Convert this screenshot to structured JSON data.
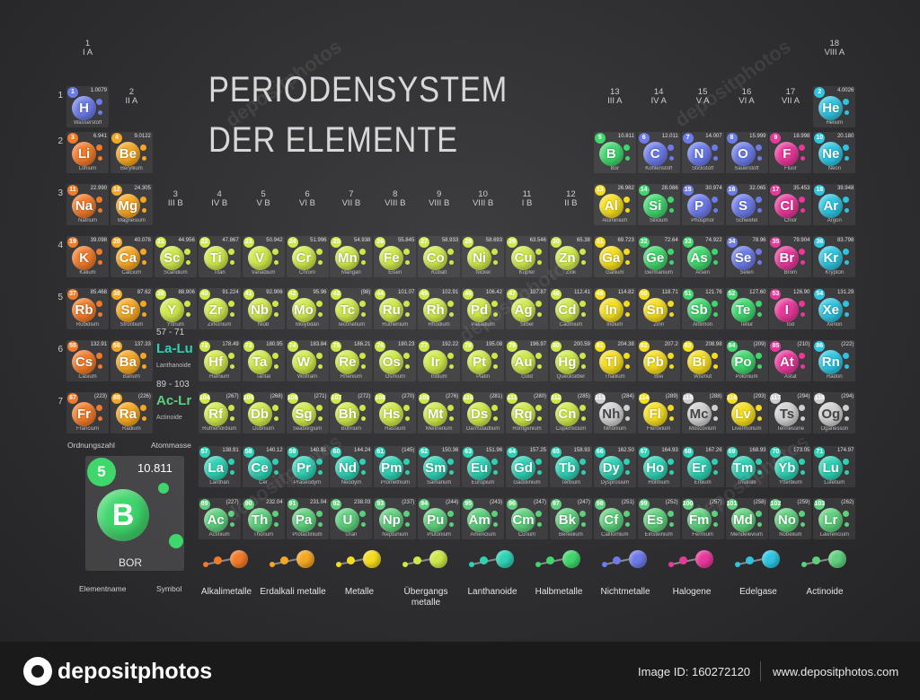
{
  "title_line1": "PERIODENSYSTEM",
  "title_line2": "DER ELEMENTE",
  "groups": [
    {
      "col": 1,
      "n": "1",
      "r": "I A",
      "row": 0
    },
    {
      "col": 2,
      "n": "2",
      "r": "II A",
      "row": 1
    },
    {
      "col": 3,
      "n": "3",
      "r": "III B",
      "row": 3
    },
    {
      "col": 4,
      "n": "4",
      "r": "IV B",
      "row": 3
    },
    {
      "col": 5,
      "n": "5",
      "r": "V B",
      "row": 3
    },
    {
      "col": 6,
      "n": "6",
      "r": "VI B",
      "row": 3
    },
    {
      "col": 7,
      "n": "7",
      "r": "VII B",
      "row": 3
    },
    {
      "col": 8,
      "n": "8",
      "r": "VIII B",
      "row": 3
    },
    {
      "col": 9,
      "n": "9",
      "r": "VIII B",
      "row": 3
    },
    {
      "col": 10,
      "n": "10",
      "r": "VIII B",
      "row": 3
    },
    {
      "col": 11,
      "n": "11",
      "r": "I B",
      "row": 3
    },
    {
      "col": 12,
      "n": "12",
      "r": "II B",
      "row": 3
    },
    {
      "col": 13,
      "n": "13",
      "r": "III A",
      "row": 1
    },
    {
      "col": 14,
      "n": "14",
      "r": "IV A",
      "row": 1
    },
    {
      "col": 15,
      "n": "15",
      "r": "V A",
      "row": 1
    },
    {
      "col": 16,
      "n": "16",
      "r": "VI A",
      "row": 1
    },
    {
      "col": 17,
      "n": "17",
      "r": "VII A",
      "row": 1
    },
    {
      "col": 18,
      "n": "18",
      "r": "VIII A",
      "row": 0
    }
  ],
  "periods": [
    "1",
    "2",
    "3",
    "4",
    "5",
    "6",
    "7"
  ],
  "colors": {
    "alkali": "#f07a2a",
    "alkaline": "#f5a623",
    "transition": "#cde84a",
    "posttrans": "#f4dc1e",
    "metalloid": "#3fd66c",
    "nonmetal": "#6c7be8",
    "halogen": "#e8389a",
    "noble": "#2ec4e0",
    "lanthanide": "#2ed1b4",
    "actinide": "#5ecf7c",
    "unknown": "#cfcfcf"
  },
  "elements": [
    {
      "z": "1",
      "s": "H",
      "n": "Wasserstoff",
      "m": "1.0079",
      "p": 1,
      "g": 1,
      "c": "nonmetal"
    },
    {
      "z": "2",
      "s": "He",
      "n": "Helium",
      "m": "4.0026",
      "p": 1,
      "g": 18,
      "c": "noble"
    },
    {
      "z": "3",
      "s": "Li",
      "n": "Lithium",
      "m": "6.941",
      "p": 2,
      "g": 1,
      "c": "alkali"
    },
    {
      "z": "4",
      "s": "Be",
      "n": "Beryllium",
      "m": "9.0122",
      "p": 2,
      "g": 2,
      "c": "alkaline"
    },
    {
      "z": "5",
      "s": "B",
      "n": "Bor",
      "m": "10.811",
      "p": 2,
      "g": 13,
      "c": "metalloid"
    },
    {
      "z": "6",
      "s": "C",
      "n": "Kohlenstoff",
      "m": "12.011",
      "p": 2,
      "g": 14,
      "c": "nonmetal"
    },
    {
      "z": "7",
      "s": "N",
      "n": "Stickstoff",
      "m": "14.007",
      "p": 2,
      "g": 15,
      "c": "nonmetal"
    },
    {
      "z": "8",
      "s": "O",
      "n": "Sauerstoff",
      "m": "15.999",
      "p": 2,
      "g": 16,
      "c": "nonmetal"
    },
    {
      "z": "9",
      "s": "F",
      "n": "Fluor",
      "m": "18.998",
      "p": 2,
      "g": 17,
      "c": "halogen"
    },
    {
      "z": "10",
      "s": "Ne",
      "n": "Neon",
      "m": "20.180",
      "p": 2,
      "g": 18,
      "c": "noble"
    },
    {
      "z": "11",
      "s": "Na",
      "n": "Natrium",
      "m": "22.990",
      "p": 3,
      "g": 1,
      "c": "alkali"
    },
    {
      "z": "12",
      "s": "Mg",
      "n": "Magnesium",
      "m": "24.305",
      "p": 3,
      "g": 2,
      "c": "alkaline"
    },
    {
      "z": "13",
      "s": "Al",
      "n": "Aluminium",
      "m": "26.982",
      "p": 3,
      "g": 13,
      "c": "posttrans"
    },
    {
      "z": "14",
      "s": "Si",
      "n": "Silicium",
      "m": "28.086",
      "p": 3,
      "g": 14,
      "c": "metalloid"
    },
    {
      "z": "15",
      "s": "P",
      "n": "Phosphor",
      "m": "30.974",
      "p": 3,
      "g": 15,
      "c": "nonmetal"
    },
    {
      "z": "16",
      "s": "S",
      "n": "Schwefel",
      "m": "32.065",
      "p": 3,
      "g": 16,
      "c": "nonmetal"
    },
    {
      "z": "17",
      "s": "Cl",
      "n": "Chlor",
      "m": "35.453",
      "p": 3,
      "g": 17,
      "c": "halogen"
    },
    {
      "z": "18",
      "s": "Ar",
      "n": "Argon",
      "m": "39.948",
      "p": 3,
      "g": 18,
      "c": "noble"
    },
    {
      "z": "19",
      "s": "K",
      "n": "Kalium",
      "m": "39.098",
      "p": 4,
      "g": 1,
      "c": "alkali"
    },
    {
      "z": "20",
      "s": "Ca",
      "n": "Calcium",
      "m": "40.078",
      "p": 4,
      "g": 2,
      "c": "alkaline"
    },
    {
      "z": "21",
      "s": "Sc",
      "n": "Scandium",
      "m": "44.956",
      "p": 4,
      "g": 3,
      "c": "transition"
    },
    {
      "z": "22",
      "s": "Ti",
      "n": "Titan",
      "m": "47.867",
      "p": 4,
      "g": 4,
      "c": "transition"
    },
    {
      "z": "23",
      "s": "V",
      "n": "Vanadium",
      "m": "50.942",
      "p": 4,
      "g": 5,
      "c": "transition"
    },
    {
      "z": "24",
      "s": "Cr",
      "n": "Chrom",
      "m": "51.996",
      "p": 4,
      "g": 6,
      "c": "transition"
    },
    {
      "z": "25",
      "s": "Mn",
      "n": "Mangan",
      "m": "54.938",
      "p": 4,
      "g": 7,
      "c": "transition"
    },
    {
      "z": "26",
      "s": "Fe",
      "n": "Eisen",
      "m": "55.845",
      "p": 4,
      "g": 8,
      "c": "transition"
    },
    {
      "z": "27",
      "s": "Co",
      "n": "Kobalt",
      "m": "58.933",
      "p": 4,
      "g": 9,
      "c": "transition"
    },
    {
      "z": "28",
      "s": "Ni",
      "n": "Nickel",
      "m": "58.693",
      "p": 4,
      "g": 10,
      "c": "transition"
    },
    {
      "z": "29",
      "s": "Cu",
      "n": "Kupfer",
      "m": "63.546",
      "p": 4,
      "g": 11,
      "c": "transition"
    },
    {
      "z": "30",
      "s": "Zn",
      "n": "Zink",
      "m": "65.38",
      "p": 4,
      "g": 12,
      "c": "transition"
    },
    {
      "z": "31",
      "s": "Ga",
      "n": "Gallium",
      "m": "69.723",
      "p": 4,
      "g": 13,
      "c": "posttrans"
    },
    {
      "z": "32",
      "s": "Ge",
      "n": "Germanium",
      "m": "72.64",
      "p": 4,
      "g": 14,
      "c": "metalloid"
    },
    {
      "z": "33",
      "s": "As",
      "n": "Arsen",
      "m": "74.922",
      "p": 4,
      "g": 15,
      "c": "metalloid"
    },
    {
      "z": "34",
      "s": "Se",
      "n": "Selen",
      "m": "78.96",
      "p": 4,
      "g": 16,
      "c": "nonmetal"
    },
    {
      "z": "35",
      "s": "Br",
      "n": "Brom",
      "m": "79.904",
      "p": 4,
      "g": 17,
      "c": "halogen"
    },
    {
      "z": "36",
      "s": "Kr",
      "n": "Krypton",
      "m": "83.798",
      "p": 4,
      "g": 18,
      "c": "noble"
    },
    {
      "z": "37",
      "s": "Rb",
      "n": "Rubidium",
      "m": "85.468",
      "p": 5,
      "g": 1,
      "c": "alkali"
    },
    {
      "z": "38",
      "s": "Sr",
      "n": "Strontium",
      "m": "87.62",
      "p": 5,
      "g": 2,
      "c": "alkaline"
    },
    {
      "z": "39",
      "s": "Y",
      "n": "Yttrium",
      "m": "88.906",
      "p": 5,
      "g": 3,
      "c": "transition"
    },
    {
      "z": "40",
      "s": "Zr",
      "n": "Zirkonium",
      "m": "91.224",
      "p": 5,
      "g": 4,
      "c": "transition"
    },
    {
      "z": "41",
      "s": "Nb",
      "n": "Niob",
      "m": "92.906",
      "p": 5,
      "g": 5,
      "c": "transition"
    },
    {
      "z": "42",
      "s": "Mo",
      "n": "Molybdän",
      "m": "95.96",
      "p": 5,
      "g": 6,
      "c": "transition"
    },
    {
      "z": "43",
      "s": "Tc",
      "n": "Technetium",
      "m": "(98)",
      "p": 5,
      "g": 7,
      "c": "transition"
    },
    {
      "z": "44",
      "s": "Ru",
      "n": "Ruthenium",
      "m": "101.07",
      "p": 5,
      "g": 8,
      "c": "transition"
    },
    {
      "z": "45",
      "s": "Rh",
      "n": "Rhodium",
      "m": "102.91",
      "p": 5,
      "g": 9,
      "c": "transition"
    },
    {
      "z": "46",
      "s": "Pd",
      "n": "Palladium",
      "m": "106.42",
      "p": 5,
      "g": 10,
      "c": "transition"
    },
    {
      "z": "47",
      "s": "Ag",
      "n": "Silber",
      "m": "107.87",
      "p": 5,
      "g": 11,
      "c": "transition"
    },
    {
      "z": "48",
      "s": "Cd",
      "n": "Cadmium",
      "m": "112.41",
      "p": 5,
      "g": 12,
      "c": "transition"
    },
    {
      "z": "49",
      "s": "In",
      "n": "Indium",
      "m": "114.82",
      "p": 5,
      "g": 13,
      "c": "posttrans"
    },
    {
      "z": "50",
      "s": "Sn",
      "n": "Zinn",
      "m": "118.71",
      "p": 5,
      "g": 14,
      "c": "posttrans"
    },
    {
      "z": "51",
      "s": "Sb",
      "n": "Antimon",
      "m": "121.76",
      "p": 5,
      "g": 15,
      "c": "metalloid"
    },
    {
      "z": "52",
      "s": "Te",
      "n": "Tellur",
      "m": "127.60",
      "p": 5,
      "g": 16,
      "c": "metalloid"
    },
    {
      "z": "53",
      "s": "I",
      "n": "Iod",
      "m": "126.90",
      "p": 5,
      "g": 17,
      "c": "halogen"
    },
    {
      "z": "54",
      "s": "Xe",
      "n": "Xenon",
      "m": "131.29",
      "p": 5,
      "g": 18,
      "c": "noble"
    },
    {
      "z": "55",
      "s": "Cs",
      "n": "Cäsium",
      "m": "132.91",
      "p": 6,
      "g": 1,
      "c": "alkali"
    },
    {
      "z": "56",
      "s": "Ba",
      "n": "Barium",
      "m": "137.33",
      "p": 6,
      "g": 2,
      "c": "alkaline"
    },
    {
      "z": "72",
      "s": "Hf",
      "n": "Hafnium",
      "m": "178.49",
      "p": 6,
      "g": 4,
      "c": "transition"
    },
    {
      "z": "73",
      "s": "Ta",
      "n": "Tantal",
      "m": "180.95",
      "p": 6,
      "g": 5,
      "c": "transition"
    },
    {
      "z": "74",
      "s": "W",
      "n": "Wolfram",
      "m": "183.84",
      "p": 6,
      "g": 6,
      "c": "transition"
    },
    {
      "z": "75",
      "s": "Re",
      "n": "Rhenium",
      "m": "186.21",
      "p": 6,
      "g": 7,
      "c": "transition"
    },
    {
      "z": "76",
      "s": "Os",
      "n": "Osmium",
      "m": "190.23",
      "p": 6,
      "g": 8,
      "c": "transition"
    },
    {
      "z": "77",
      "s": "Ir",
      "n": "Iridium",
      "m": "192.22",
      "p": 6,
      "g": 9,
      "c": "transition"
    },
    {
      "z": "78",
      "s": "Pt",
      "n": "Platin",
      "m": "195.08",
      "p": 6,
      "g": 10,
      "c": "transition"
    },
    {
      "z": "79",
      "s": "Au",
      "n": "Gold",
      "m": "196.97",
      "p": 6,
      "g": 11,
      "c": "transition"
    },
    {
      "z": "80",
      "s": "Hg",
      "n": "Quecksilber",
      "m": "200.59",
      "p": 6,
      "g": 12,
      "c": "transition"
    },
    {
      "z": "81",
      "s": "Tl",
      "n": "Thallium",
      "m": "204.38",
      "p": 6,
      "g": 13,
      "c": "posttrans"
    },
    {
      "z": "82",
      "s": "Pb",
      "n": "Blei",
      "m": "207.2",
      "p": 6,
      "g": 14,
      "c": "posttrans"
    },
    {
      "z": "83",
      "s": "Bi",
      "n": "Wismut",
      "m": "208.98",
      "p": 6,
      "g": 15,
      "c": "posttrans"
    },
    {
      "z": "84",
      "s": "Po",
      "n": "Polonium",
      "m": "(209)",
      "p": 6,
      "g": 16,
      "c": "metalloid"
    },
    {
      "z": "85",
      "s": "At",
      "n": "Astat",
      "m": "(210)",
      "p": 6,
      "g": 17,
      "c": "halogen"
    },
    {
      "z": "86",
      "s": "Rn",
      "n": "Radon",
      "m": "(222)",
      "p": 6,
      "g": 18,
      "c": "noble"
    },
    {
      "z": "87",
      "s": "Fr",
      "n": "Francium",
      "m": "(223)",
      "p": 7,
      "g": 1,
      "c": "alkali"
    },
    {
      "z": "88",
      "s": "Ra",
      "n": "Radium",
      "m": "(226)",
      "p": 7,
      "g": 2,
      "c": "alkaline"
    },
    {
      "z": "104",
      "s": "Rf",
      "n": "Rutherfordium",
      "m": "(267)",
      "p": 7,
      "g": 4,
      "c": "transition"
    },
    {
      "z": "105",
      "s": "Db",
      "n": "Dubnium",
      "m": "(268)",
      "p": 7,
      "g": 5,
      "c": "transition"
    },
    {
      "z": "106",
      "s": "Sg",
      "n": "Seaborgium",
      "m": "(271)",
      "p": 7,
      "g": 6,
      "c": "transition"
    },
    {
      "z": "107",
      "s": "Bh",
      "n": "Bohrium",
      "m": "(272)",
      "p": 7,
      "g": 7,
      "c": "transition"
    },
    {
      "z": "108",
      "s": "Hs",
      "n": "Hassium",
      "m": "(270)",
      "p": 7,
      "g": 8,
      "c": "transition"
    },
    {
      "z": "109",
      "s": "Mt",
      "n": "Meitnerium",
      "m": "(276)",
      "p": 7,
      "g": 9,
      "c": "transition"
    },
    {
      "z": "110",
      "s": "Ds",
      "n": "Darmstadtium",
      "m": "(281)",
      "p": 7,
      "g": 10,
      "c": "transition"
    },
    {
      "z": "111",
      "s": "Rg",
      "n": "Röntgenium",
      "m": "(280)",
      "p": 7,
      "g": 11,
      "c": "transition"
    },
    {
      "z": "112",
      "s": "Cn",
      "n": "Copernicium",
      "m": "(285)",
      "p": 7,
      "g": 12,
      "c": "transition"
    },
    {
      "z": "113",
      "s": "Nh",
      "n": "Nihonium",
      "m": "(284)",
      "p": 7,
      "g": 13,
      "c": "unknown"
    },
    {
      "z": "114",
      "s": "Fl",
      "n": "Flerovium",
      "m": "(289)",
      "p": 7,
      "g": 14,
      "c": "posttrans"
    },
    {
      "z": "115",
      "s": "Mc",
      "n": "Moscovium",
      "m": "(288)",
      "p": 7,
      "g": 15,
      "c": "unknown"
    },
    {
      "z": "116",
      "s": "Lv",
      "n": "Livermorium",
      "m": "(293)",
      "p": 7,
      "g": 16,
      "c": "posttrans"
    },
    {
      "z": "117",
      "s": "Ts",
      "n": "Tennessine",
      "m": "(294)",
      "p": 7,
      "g": 17,
      "c": "unknown"
    },
    {
      "z": "118",
      "s": "Og",
      "n": "Oganesson",
      "m": "(294)",
      "p": 7,
      "g": 18,
      "c": "unknown"
    },
    {
      "z": "57",
      "s": "La",
      "n": "Lanthan",
      "m": "138.91",
      "p": 9,
      "g": 4,
      "c": "lanthanide"
    },
    {
      "z": "58",
      "s": "Ce",
      "n": "Cer",
      "m": "140.12",
      "p": 9,
      "g": 5,
      "c": "lanthanide"
    },
    {
      "z": "59",
      "s": "Pr",
      "n": "Praseodym",
      "m": "140.91",
      "p": 9,
      "g": 6,
      "c": "lanthanide"
    },
    {
      "z": "60",
      "s": "Nd",
      "n": "Neodym",
      "m": "144.24",
      "p": 9,
      "g": 7,
      "c": "lanthanide"
    },
    {
      "z": "61",
      "s": "Pm",
      "n": "Promethium",
      "m": "(145)",
      "p": 9,
      "g": 8,
      "c": "lanthanide"
    },
    {
      "z": "62",
      "s": "Sm",
      "n": "Samarium",
      "m": "150.36",
      "p": 9,
      "g": 9,
      "c": "lanthanide"
    },
    {
      "z": "63",
      "s": "Eu",
      "n": "Europium",
      "m": "151.96",
      "p": 9,
      "g": 10,
      "c": "lanthanide"
    },
    {
      "z": "64",
      "s": "Gd",
      "n": "Gadolinium",
      "m": "157.25",
      "p": 9,
      "g": 11,
      "c": "lanthanide"
    },
    {
      "z": "65",
      "s": "Tb",
      "n": "Terbium",
      "m": "158.93",
      "p": 9,
      "g": 12,
      "c": "lanthanide"
    },
    {
      "z": "66",
      "s": "Dy",
      "n": "Dysprosium",
      "m": "162.50",
      "p": 9,
      "g": 13,
      "c": "lanthanide"
    },
    {
      "z": "67",
      "s": "Ho",
      "n": "Holmium",
      "m": "164.93",
      "p": 9,
      "g": 14,
      "c": "lanthanide"
    },
    {
      "z": "68",
      "s": "Er",
      "n": "Erbium",
      "m": "167.26",
      "p": 9,
      "g": 15,
      "c": "lanthanide"
    },
    {
      "z": "69",
      "s": "Tm",
      "n": "Thulium",
      "m": "168.93",
      "p": 9,
      "g": 16,
      "c": "lanthanide"
    },
    {
      "z": "70",
      "s": "Yb",
      "n": "Ytterbium",
      "m": "173.05",
      "p": 9,
      "g": 17,
      "c": "lanthanide"
    },
    {
      "z": "71",
      "s": "Lu",
      "n": "Lutetium",
      "m": "174.97",
      "p": 9,
      "g": 18,
      "c": "lanthanide"
    },
    {
      "z": "89",
      "s": "Ac",
      "n": "Actinium",
      "m": "(227)",
      "p": 10,
      "g": 4,
      "c": "actinide"
    },
    {
      "z": "90",
      "s": "Th",
      "n": "Thorium",
      "m": "232.04",
      "p": 10,
      "g": 5,
      "c": "actinide"
    },
    {
      "z": "91",
      "s": "Pa",
      "n": "Protactinium",
      "m": "231.04",
      "p": 10,
      "g": 6,
      "c": "actinide"
    },
    {
      "z": "92",
      "s": "U",
      "n": "Uran",
      "m": "238.03",
      "p": 10,
      "g": 7,
      "c": "actinide"
    },
    {
      "z": "93",
      "s": "Np",
      "n": "Neptunium",
      "m": "(237)",
      "p": 10,
      "g": 8,
      "c": "actinide"
    },
    {
      "z": "94",
      "s": "Pu",
      "n": "Plutonium",
      "m": "(244)",
      "p": 10,
      "g": 9,
      "c": "actinide"
    },
    {
      "z": "95",
      "s": "Am",
      "n": "Americium",
      "m": "(243)",
      "p": 10,
      "g": 10,
      "c": "actinide"
    },
    {
      "z": "96",
      "s": "Cm",
      "n": "Curium",
      "m": "(247)",
      "p": 10,
      "g": 11,
      "c": "actinide"
    },
    {
      "z": "97",
      "s": "Bk",
      "n": "Berkelium",
      "m": "(247)",
      "p": 10,
      "g": 12,
      "c": "actinide"
    },
    {
      "z": "98",
      "s": "Cf",
      "n": "Californium",
      "m": "(251)",
      "p": 10,
      "g": 13,
      "c": "actinide"
    },
    {
      "z": "99",
      "s": "Es",
      "n": "Einsteinium",
      "m": "(252)",
      "p": 10,
      "g": 14,
      "c": "actinide"
    },
    {
      "z": "100",
      "s": "Fm",
      "n": "Fermium",
      "m": "(257)",
      "p": 10,
      "g": 15,
      "c": "actinide"
    },
    {
      "z": "101",
      "s": "Md",
      "n": "Mendelevium",
      "m": "(258)",
      "p": 10,
      "g": 16,
      "c": "actinide"
    },
    {
      "z": "102",
      "s": "No",
      "n": "Nobelium",
      "m": "(259)",
      "p": 10,
      "g": 17,
      "c": "actinide"
    },
    {
      "z": "103",
      "s": "Lr",
      "n": "Lawrencium",
      "m": "(262)",
      "p": 10,
      "g": 18,
      "c": "actinide"
    }
  ],
  "placeholders": {
    "lanthanoid": {
      "range": "57 - 71",
      "sym": "La-Lu",
      "name": "Lanthanoide",
      "color": "#2ed1b4"
    },
    "actinoid": {
      "range": "89 - 103",
      "sym": "Ac-Lr",
      "name": "Actinoide",
      "color": "#5ecf7c"
    }
  },
  "key": {
    "number": "5",
    "mass": "10.811",
    "symbol": "B",
    "name": "BOR",
    "label_number": "Ordnungszahl",
    "label_mass": "Atommasse",
    "label_name": "Elementname",
    "label_symbol": "Symbol"
  },
  "legend": [
    {
      "label": "Alkalimetalle",
      "c": "alkali"
    },
    {
      "label": "Erdalkali metalle",
      "c": "alkaline"
    },
    {
      "label": "Metalle",
      "c": "posttrans"
    },
    {
      "label": "Übergangs metalle",
      "c": "transition"
    },
    {
      "label": "Lanthanoide",
      "c": "lanthanide"
    },
    {
      "label": "Halbmetalle",
      "c": "metalloid"
    },
    {
      "label": "Nichtmetalle",
      "c": "nonmetal"
    },
    {
      "label": "Halogene",
      "c": "halogen"
    },
    {
      "label": "Edelgase",
      "c": "noble"
    },
    {
      "label": "Actinoide",
      "c": "actinide"
    }
  ],
  "footer": {
    "brand": "depositphotos",
    "image_id": "Image ID: 160272120",
    "site": "www.depositphotos.com"
  },
  "watermark": "depositphotos"
}
